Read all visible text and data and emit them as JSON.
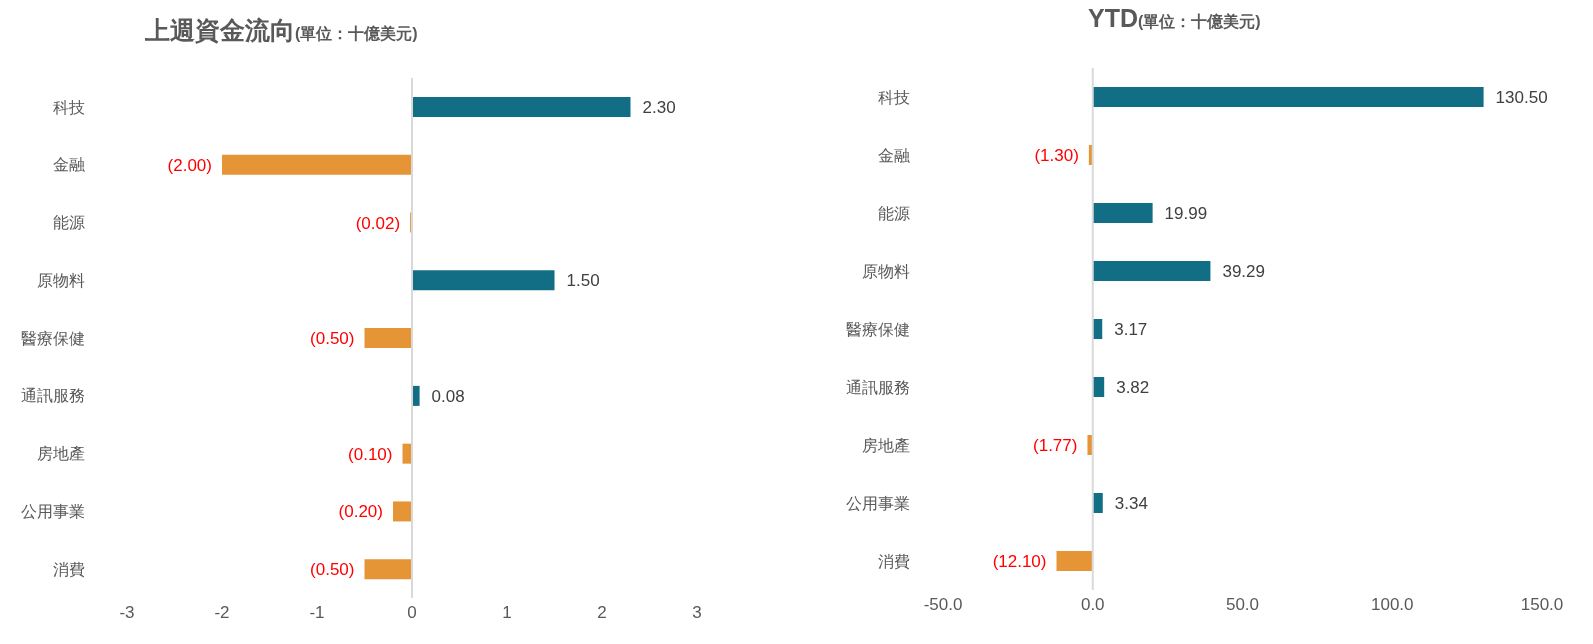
{
  "chart_data": [
    {
      "type": "bar",
      "orientation": "horizontal",
      "title": "上週資金流向",
      "subtitle": "(單位：十億美元)",
      "categories": [
        "科技",
        "金融",
        "能源",
        "原物料",
        "醫療保健",
        "通訊服務",
        "房地產",
        "公用事業",
        "消費"
      ],
      "values": [
        2.3,
        -2,
        -0.02,
        1.5,
        -0.5,
        0.08,
        -0.1,
        -0.2,
        -0.5
      ],
      "colors": [
        "#116e84",
        "#e69536",
        "#e69536",
        "#116e84",
        "#e69536",
        "#116e84",
        "#e69536",
        "#e69536",
        "#e69536"
      ],
      "value_labels": [
        "2.30",
        "(2.00)",
        "(0.02)",
        "1.50",
        "(0.50)",
        "0.08",
        "(0.10)",
        "(0.20)",
        "(0.50)"
      ],
      "xlim": [
        -3,
        3
      ],
      "xticks": [
        -3,
        -2,
        -1,
        0,
        1,
        2,
        3
      ]
    },
    {
      "type": "bar",
      "orientation": "horizontal",
      "title": "YTD",
      "subtitle": "(單位：十億美元)",
      "categories": [
        "科技",
        "金融",
        "能源",
        "原物料",
        "醫療保健",
        "通訊服務",
        "房地產",
        "公用事業",
        "消費"
      ],
      "values": [
        130.5,
        -1.3,
        19.99,
        39.29,
        3.17,
        3.82,
        -1.77,
        3.34,
        -12.1
      ],
      "colors": [
        "#116e84",
        "#e69536",
        "#116e84",
        "#116e84",
        "#116e84",
        "#116e84",
        "#e69536",
        "#116e84",
        "#e69536"
      ],
      "value_labels": [
        "130.50",
        "(1.30)",
        "19.99",
        "39.29",
        "3.17",
        "3.82",
        "(1.77)",
        "3.34",
        "(12.10)"
      ],
      "xlim": [
        -50,
        150
      ],
      "xticks": [
        {
          "value": -50,
          "label": "-50.0"
        },
        {
          "value": 0,
          "label": "0.0"
        },
        {
          "value": 50,
          "label": "50.0"
        },
        {
          "value": 100,
          "label": "100.0"
        },
        {
          "value": 150,
          "label": "150.0"
        }
      ]
    }
  ]
}
